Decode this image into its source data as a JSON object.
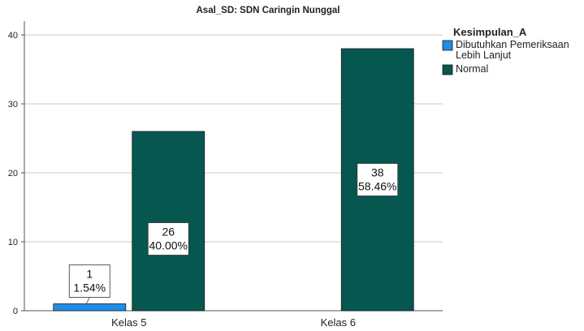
{
  "chart_data": {
    "type": "bar",
    "title": "Asal_SD: SDN Caringin Nunggal",
    "xlabel": "",
    "ylabel": "",
    "categories": [
      "Kelas 5",
      "Kelas 6"
    ],
    "ylim": [
      0,
      42
    ],
    "yticks": [
      0,
      10,
      20,
      30,
      40
    ],
    "grid": true,
    "legend": {
      "title": "Kesimpulan_A",
      "placement": "right"
    },
    "series": [
      {
        "name_lines": [
          "Dibutuhkan Pemeriksaan",
          "Lebih Lanjut"
        ],
        "color": "#1f8ee6",
        "values": [
          1,
          null
        ],
        "labels": [
          [
            "1",
            "1.54%"
          ],
          null
        ]
      },
      {
        "name_lines": [
          "Normal"
        ],
        "color": "#06574f",
        "values": [
          26,
          38
        ],
        "labels": [
          [
            "26",
            "40.00%"
          ],
          [
            "38",
            "58.46%"
          ]
        ]
      }
    ]
  }
}
